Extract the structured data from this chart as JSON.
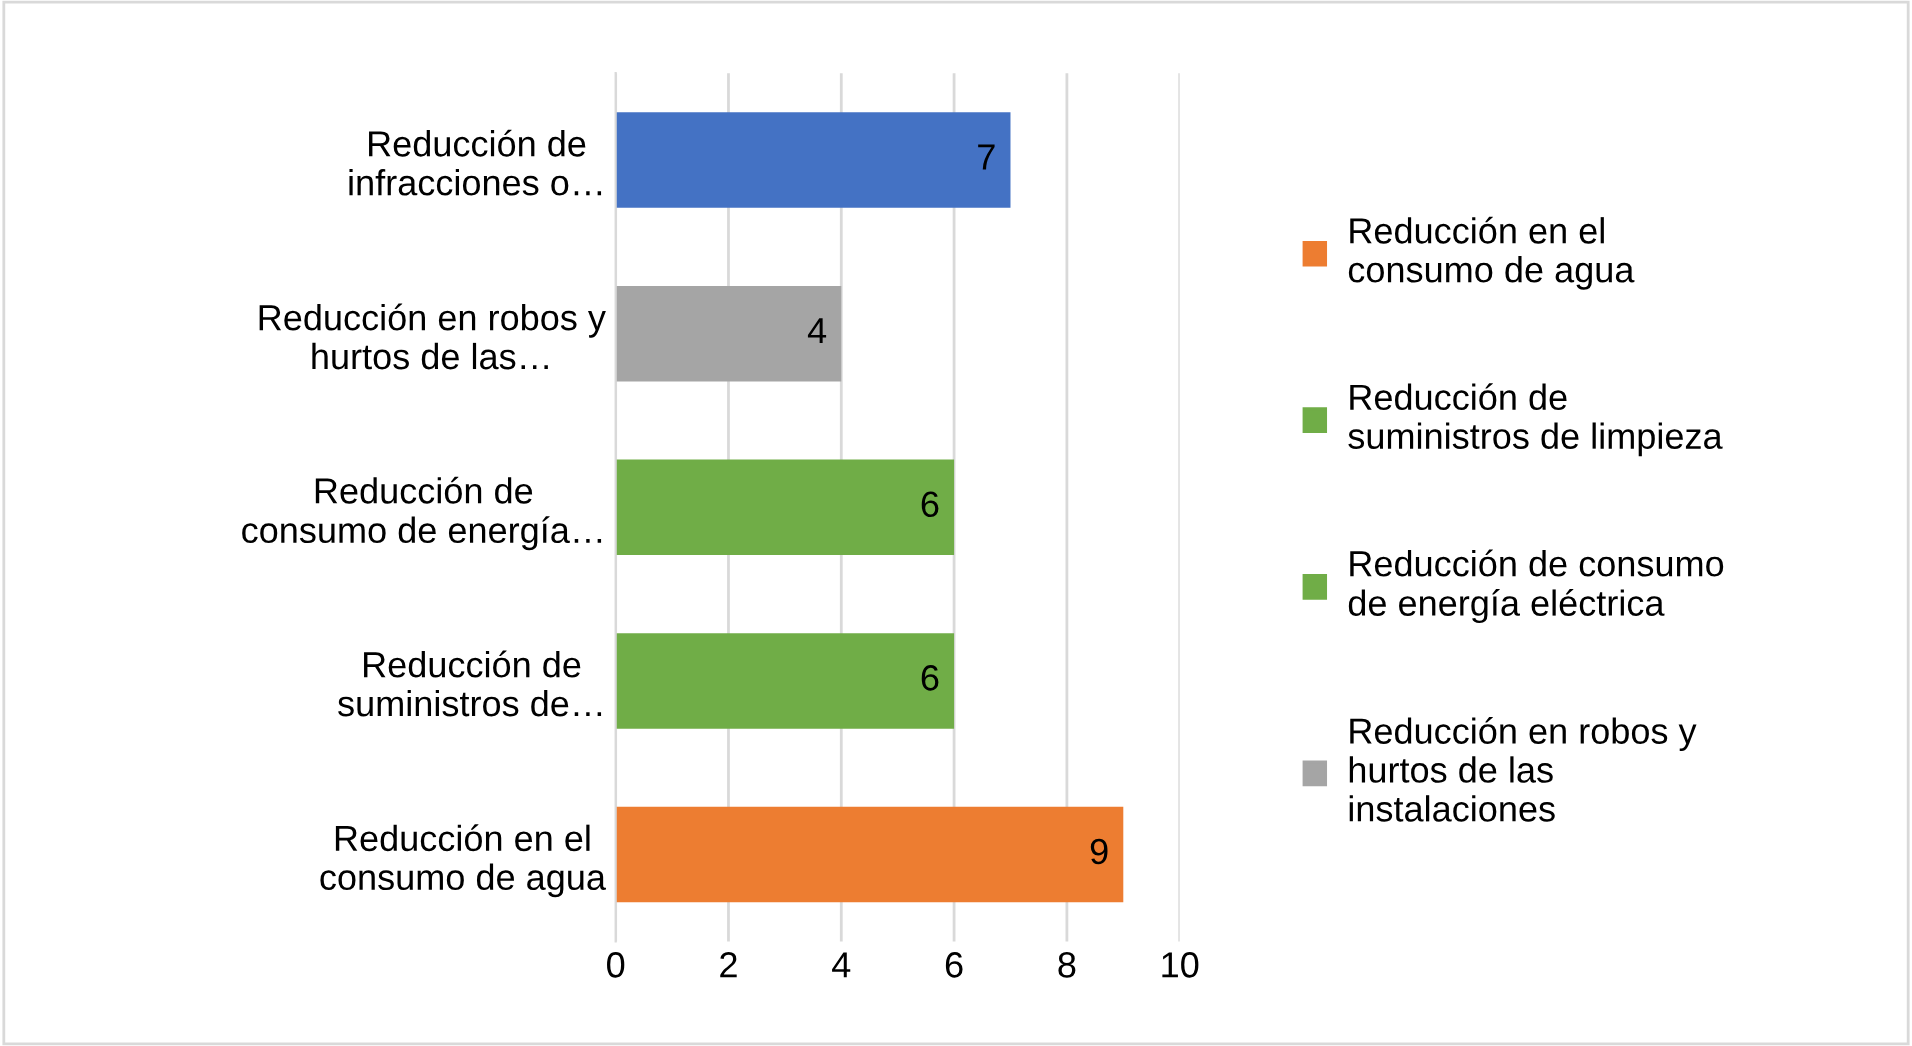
{
  "chart_data": {
    "type": "bar",
    "orientation": "horizontal",
    "categories": [
      "Reducción de\ninfracciones o…",
      "Reducción en robos y\nhurtos de las…",
      "Reducción de\nconsumo de energía…",
      "Reducción de\nsuministros de…",
      "Reducción en el\nconsumo de agua"
    ],
    "series": [
      {
        "name": "Reducción en el\nconsumo de agua",
        "color": "#ed7d31",
        "values": [
          null,
          null,
          null,
          null,
          9
        ]
      },
      {
        "name": "Reducción de\nsuministros de limpieza",
        "color": "#70ad47",
        "values": [
          null,
          null,
          null,
          6,
          null
        ]
      },
      {
        "name": "Reducción de consumo\nde energía eléctrica",
        "color": "#70ad47",
        "values": [
          null,
          null,
          6,
          null,
          null
        ]
      },
      {
        "name": "Reducción en robos y\nhurtos de las\ninstalaciones",
        "color": "#a5a5a5",
        "values": [
          null,
          4,
          null,
          null,
          null
        ]
      },
      {
        "color": "#4472c4",
        "values": [
          7,
          null,
          null,
          null,
          null
        ]
      }
    ],
    "xlim": [
      0,
      10
    ],
    "xticks": [
      0,
      2,
      4,
      6,
      8,
      10
    ],
    "grid": "x",
    "data_labels": true,
    "legend": "right"
  }
}
